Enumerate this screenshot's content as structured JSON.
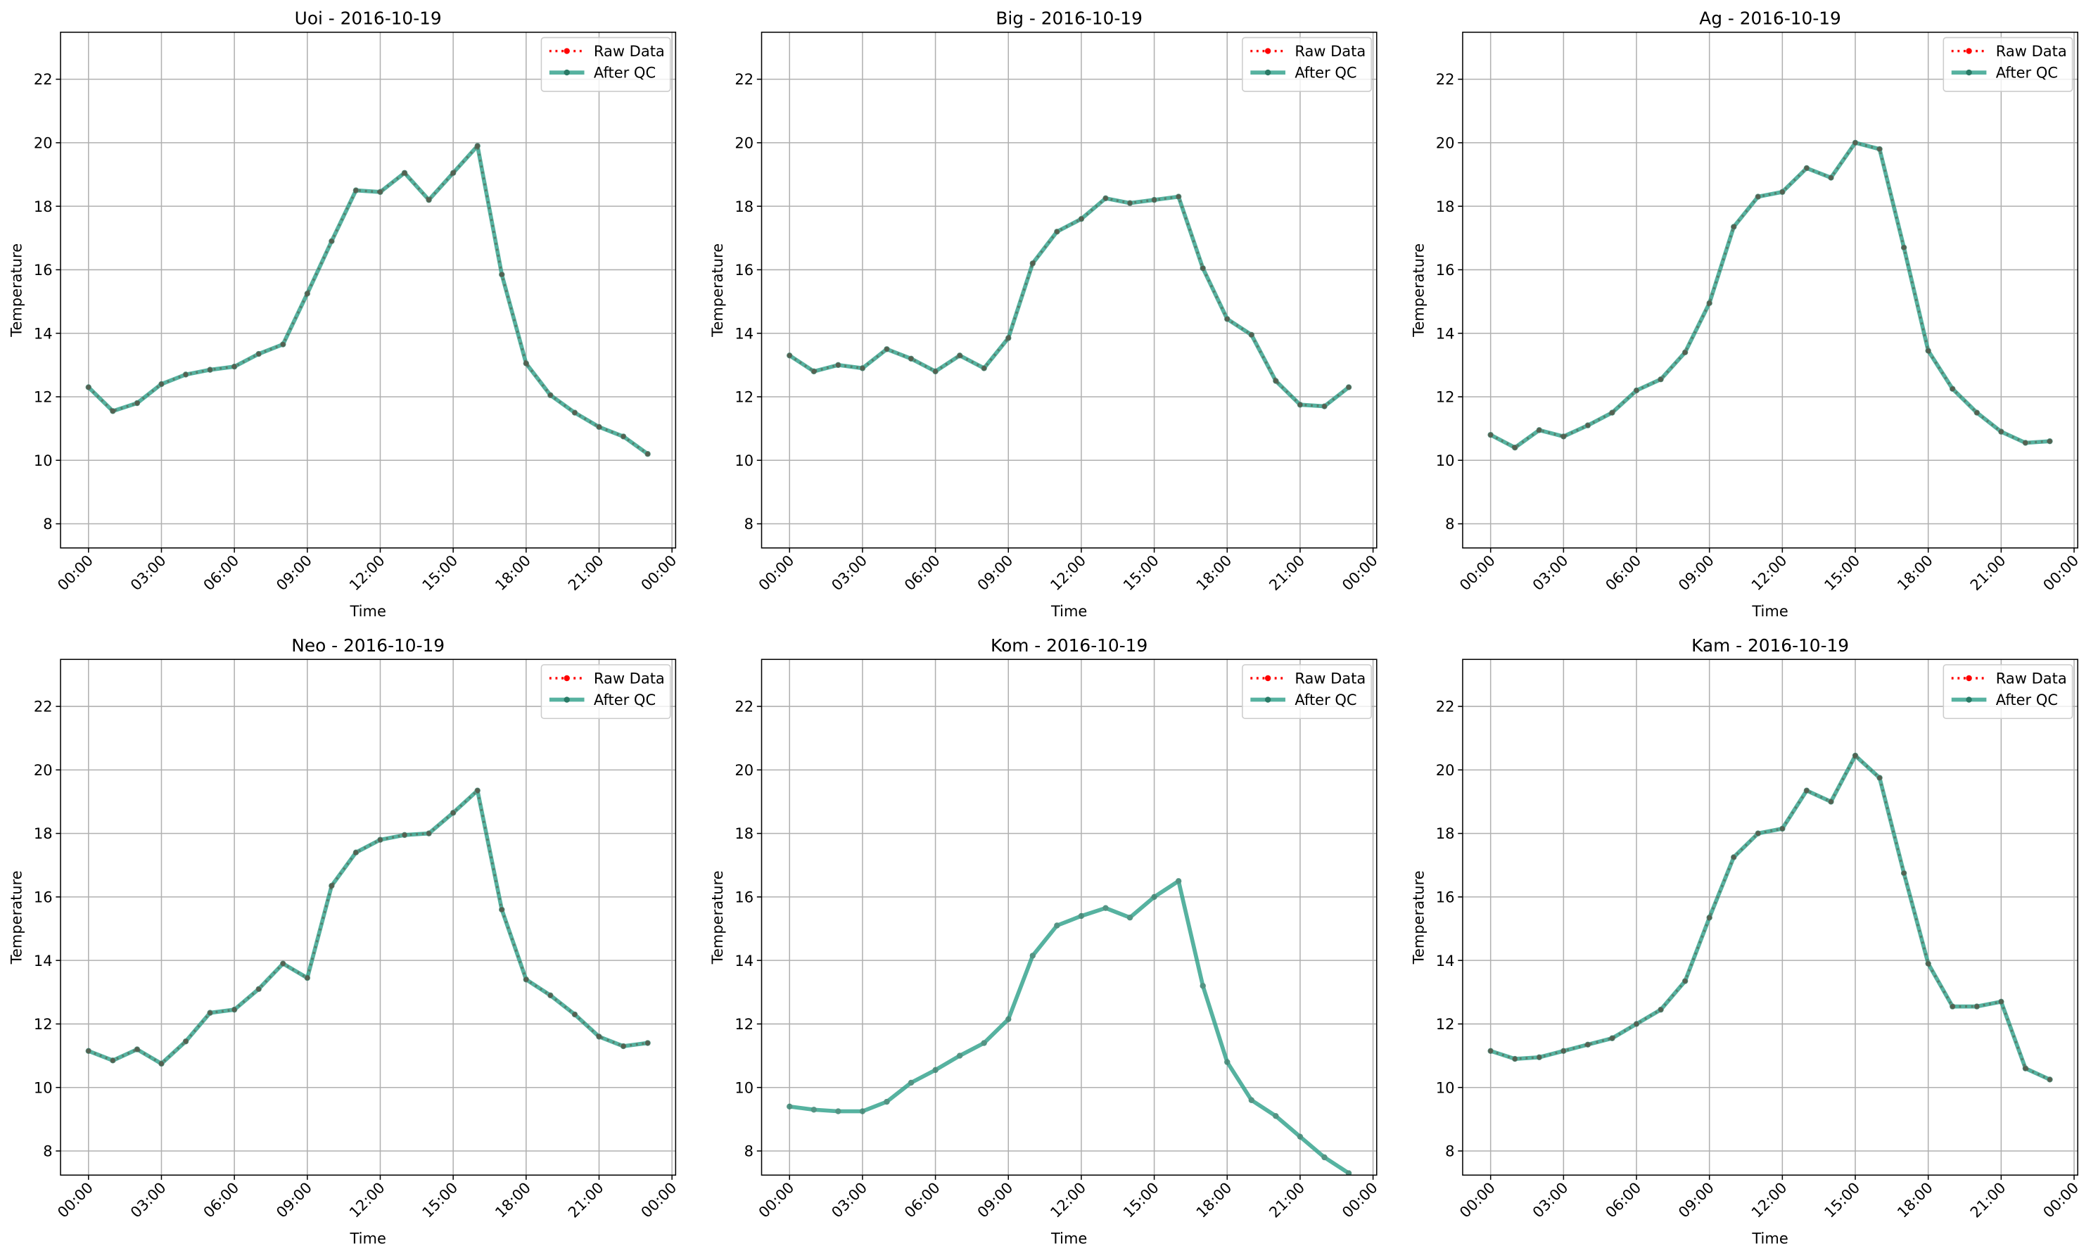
{
  "chart_data": [
    {
      "type": "line",
      "title": "Uoi - 2016-10-19",
      "xlabel": "Time",
      "ylabel": "Temperature",
      "x": [
        0,
        1,
        2,
        3,
        4,
        5,
        6,
        7,
        8,
        9,
        10,
        11,
        12,
        13,
        14,
        15,
        16,
        17,
        18,
        19,
        20,
        21,
        22,
        23
      ],
      "xlim": [
        -1.15,
        24.15
      ],
      "xticks": [
        {
          "value": 0,
          "label": "00:00"
        },
        {
          "value": 3,
          "label": "03:00"
        },
        {
          "value": 6,
          "label": "06:00"
        },
        {
          "value": 9,
          "label": "09:00"
        },
        {
          "value": 12,
          "label": "12:00"
        },
        {
          "value": 15,
          "label": "15:00"
        },
        {
          "value": 18,
          "label": "18:00"
        },
        {
          "value": 21,
          "label": "21:00"
        },
        {
          "value": 24,
          "label": "00:00"
        }
      ],
      "ylim": [
        7.24,
        23.48
      ],
      "yticks": [
        8,
        10,
        12,
        14,
        16,
        18,
        20,
        22
      ],
      "grid": true,
      "legend": "upper right",
      "series": [
        {
          "name": "Raw Data",
          "color": "#ff0000",
          "linestyle": "dotted",
          "values": [
            12.3,
            11.55,
            11.8,
            12.4,
            12.7,
            12.85,
            12.95,
            13.35,
            13.65,
            15.25,
            16.9,
            18.5,
            18.45,
            19.05,
            18.2,
            19.05,
            19.9,
            15.85,
            13.05,
            12.05,
            11.5,
            11.05,
            10.75,
            10.2
          ]
        },
        {
          "name": "After QC",
          "color": "#2ca089",
          "linestyle": "solid",
          "values": [
            12.3,
            11.55,
            11.8,
            12.4,
            12.7,
            12.85,
            12.95,
            13.35,
            13.65,
            15.25,
            16.9,
            18.5,
            18.45,
            19.05,
            18.2,
            19.05,
            19.9,
            15.85,
            13.05,
            12.05,
            11.5,
            11.05,
            10.75,
            10.2
          ]
        }
      ]
    },
    {
      "type": "line",
      "title": "Big - 2016-10-19",
      "xlabel": "Time",
      "ylabel": "Temperature",
      "x": [
        0,
        1,
        2,
        3,
        4,
        5,
        6,
        7,
        8,
        9,
        10,
        11,
        12,
        13,
        14,
        15,
        16,
        17,
        18,
        19,
        20,
        21,
        22,
        23
      ],
      "xlim": [
        -1.15,
        24.15
      ],
      "xticks": [
        {
          "value": 0,
          "label": "00:00"
        },
        {
          "value": 3,
          "label": "03:00"
        },
        {
          "value": 6,
          "label": "06:00"
        },
        {
          "value": 9,
          "label": "09:00"
        },
        {
          "value": 12,
          "label": "12:00"
        },
        {
          "value": 15,
          "label": "15:00"
        },
        {
          "value": 18,
          "label": "18:00"
        },
        {
          "value": 21,
          "label": "21:00"
        },
        {
          "value": 24,
          "label": "00:00"
        }
      ],
      "ylim": [
        7.24,
        23.48
      ],
      "yticks": [
        8,
        10,
        12,
        14,
        16,
        18,
        20,
        22
      ],
      "grid": true,
      "legend": "upper right",
      "series": [
        {
          "name": "Raw Data",
          "color": "#ff0000",
          "linestyle": "dotted",
          "values": [
            13.3,
            12.8,
            13.0,
            12.9,
            13.5,
            13.2,
            12.8,
            13.3,
            12.9,
            13.85,
            16.2,
            17.2,
            17.6,
            18.25,
            18.1,
            18.2,
            18.3,
            16.05,
            14.45,
            13.95,
            12.5,
            11.75,
            11.7,
            12.3
          ]
        },
        {
          "name": "After QC",
          "color": "#2ca089",
          "linestyle": "solid",
          "values": [
            13.3,
            12.8,
            13.0,
            12.9,
            13.5,
            13.2,
            12.8,
            13.3,
            12.9,
            13.85,
            16.2,
            17.2,
            17.6,
            18.25,
            18.1,
            18.2,
            18.3,
            16.05,
            14.45,
            13.95,
            12.5,
            11.75,
            11.7,
            12.3
          ]
        }
      ]
    },
    {
      "type": "line",
      "title": "Ag - 2016-10-19",
      "xlabel": "Time",
      "ylabel": "Temperature",
      "x": [
        0,
        1,
        2,
        3,
        4,
        5,
        6,
        7,
        8,
        9,
        10,
        11,
        12,
        13,
        14,
        15,
        16,
        17,
        18,
        19,
        20,
        21,
        22,
        23
      ],
      "xlim": [
        -1.15,
        24.15
      ],
      "xticks": [
        {
          "value": 0,
          "label": "00:00"
        },
        {
          "value": 3,
          "label": "03:00"
        },
        {
          "value": 6,
          "label": "06:00"
        },
        {
          "value": 9,
          "label": "09:00"
        },
        {
          "value": 12,
          "label": "12:00"
        },
        {
          "value": 15,
          "label": "15:00"
        },
        {
          "value": 18,
          "label": "18:00"
        },
        {
          "value": 21,
          "label": "21:00"
        },
        {
          "value": 24,
          "label": "00:00"
        }
      ],
      "ylim": [
        7.24,
        23.48
      ],
      "yticks": [
        8,
        10,
        12,
        14,
        16,
        18,
        20,
        22
      ],
      "grid": true,
      "legend": "upper right",
      "series": [
        {
          "name": "Raw Data",
          "color": "#ff0000",
          "linestyle": "dotted",
          "values": [
            10.8,
            10.4,
            10.95,
            10.75,
            11.1,
            11.5,
            12.2,
            12.55,
            13.4,
            14.95,
            17.35,
            18.3,
            18.45,
            19.2,
            18.9,
            20.0,
            19.8,
            16.7,
            13.45,
            12.25,
            11.5,
            10.9,
            10.55,
            10.6
          ]
        },
        {
          "name": "After QC",
          "color": "#2ca089",
          "linestyle": "solid",
          "values": [
            10.8,
            10.4,
            10.95,
            10.75,
            11.1,
            11.5,
            12.2,
            12.55,
            13.4,
            14.95,
            17.35,
            18.3,
            18.45,
            19.2,
            18.9,
            20.0,
            19.8,
            16.7,
            13.45,
            12.25,
            11.5,
            10.9,
            10.55,
            10.6
          ]
        }
      ]
    },
    {
      "type": "line",
      "title": "Neo - 2016-10-19",
      "xlabel": "Time",
      "ylabel": "Temperature",
      "x": [
        0,
        1,
        2,
        3,
        4,
        5,
        6,
        7,
        8,
        9,
        10,
        11,
        12,
        13,
        14,
        15,
        16,
        17,
        18,
        19,
        20,
        21,
        22,
        23
      ],
      "xlim": [
        -1.15,
        24.15
      ],
      "xticks": [
        {
          "value": 0,
          "label": "00:00"
        },
        {
          "value": 3,
          "label": "03:00"
        },
        {
          "value": 6,
          "label": "06:00"
        },
        {
          "value": 9,
          "label": "09:00"
        },
        {
          "value": 12,
          "label": "12:00"
        },
        {
          "value": 15,
          "label": "15:00"
        },
        {
          "value": 18,
          "label": "18:00"
        },
        {
          "value": 21,
          "label": "21:00"
        },
        {
          "value": 24,
          "label": "00:00"
        }
      ],
      "ylim": [
        7.24,
        23.48
      ],
      "yticks": [
        8,
        10,
        12,
        14,
        16,
        18,
        20,
        22
      ],
      "grid": true,
      "legend": "upper right",
      "series": [
        {
          "name": "Raw Data",
          "color": "#ff0000",
          "linestyle": "dotted",
          "values": [
            11.15,
            10.85,
            11.2,
            10.75,
            11.45,
            12.35,
            12.45,
            13.1,
            13.9,
            13.45,
            16.35,
            17.4,
            17.8,
            17.95,
            18.0,
            18.65,
            19.35,
            15.6,
            13.4,
            12.9,
            12.3,
            11.6,
            11.3,
            11.4
          ]
        },
        {
          "name": "After QC",
          "color": "#2ca089",
          "linestyle": "solid",
          "values": [
            11.15,
            10.85,
            11.2,
            10.75,
            11.45,
            12.35,
            12.45,
            13.1,
            13.9,
            13.45,
            16.35,
            17.4,
            17.8,
            17.95,
            18.0,
            18.65,
            19.35,
            15.6,
            13.4,
            12.9,
            12.3,
            11.6,
            11.3,
            11.4
          ]
        }
      ]
    },
    {
      "type": "line",
      "title": "Kom - 2016-10-19",
      "xlabel": "Time",
      "ylabel": "Temperature",
      "x": [
        0,
        1,
        2,
        3,
        4,
        5,
        6,
        7,
        8,
        9,
        10,
        11,
        12,
        13,
        14,
        15,
        16,
        17,
        18,
        19,
        20,
        21,
        22,
        23
      ],
      "xlim": [
        -1.15,
        24.15
      ],
      "xticks": [
        {
          "value": 0,
          "label": "00:00"
        },
        {
          "value": 3,
          "label": "03:00"
        },
        {
          "value": 6,
          "label": "06:00"
        },
        {
          "value": 9,
          "label": "09:00"
        },
        {
          "value": 12,
          "label": "12:00"
        },
        {
          "value": 15,
          "label": "15:00"
        },
        {
          "value": 18,
          "label": "18:00"
        },
        {
          "value": 21,
          "label": "21:00"
        },
        {
          "value": 24,
          "label": "00:00"
        }
      ],
      "ylim": [
        7.24,
        23.48
      ],
      "yticks": [
        8,
        10,
        12,
        14,
        16,
        18,
        20,
        22
      ],
      "grid": true,
      "legend": "upper right",
      "series": [
        {
          "name": "Raw Data",
          "color": "#ff0000",
          "linestyle": "dotted",
          "values": [
            null,
            null,
            null,
            null,
            null,
            null,
            null,
            null,
            null,
            null,
            null,
            null,
            null,
            null,
            null,
            null,
            null,
            null,
            null,
            null,
            null,
            null,
            null,
            null
          ]
        },
        {
          "name": "After QC",
          "color": "#2ca089",
          "linestyle": "solid",
          "values": [
            9.4,
            9.3,
            9.25,
            9.25,
            9.55,
            10.15,
            10.55,
            11.0,
            11.4,
            12.15,
            14.15,
            15.1,
            15.4,
            15.65,
            15.35,
            16.0,
            16.5,
            13.2,
            10.8,
            9.6,
            9.1,
            8.45,
            7.8,
            7.3
          ]
        }
      ]
    },
    {
      "type": "line",
      "title": "Kam - 2016-10-19",
      "xlabel": "Time",
      "ylabel": "Temperature",
      "x": [
        0,
        1,
        2,
        3,
        4,
        5,
        6,
        7,
        8,
        9,
        10,
        11,
        12,
        13,
        14,
        15,
        16,
        17,
        18,
        19,
        20,
        21,
        22,
        23
      ],
      "xlim": [
        -1.15,
        24.15
      ],
      "xticks": [
        {
          "value": 0,
          "label": "00:00"
        },
        {
          "value": 3,
          "label": "03:00"
        },
        {
          "value": 6,
          "label": "06:00"
        },
        {
          "value": 9,
          "label": "09:00"
        },
        {
          "value": 12,
          "label": "12:00"
        },
        {
          "value": 15,
          "label": "15:00"
        },
        {
          "value": 18,
          "label": "18:00"
        },
        {
          "value": 21,
          "label": "21:00"
        },
        {
          "value": 24,
          "label": "00:00"
        }
      ],
      "ylim": [
        7.24,
        23.48
      ],
      "yticks": [
        8,
        10,
        12,
        14,
        16,
        18,
        20,
        22
      ],
      "grid": true,
      "legend": "upper right",
      "series": [
        {
          "name": "Raw Data",
          "color": "#ff0000",
          "linestyle": "dotted",
          "values": [
            11.15,
            10.9,
            10.95,
            11.15,
            11.35,
            11.55,
            12.0,
            12.45,
            13.35,
            15.35,
            17.25,
            18.0,
            18.15,
            19.35,
            19.0,
            20.45,
            19.75,
            16.75,
            13.9,
            12.55,
            12.55,
            12.7,
            10.6,
            10.25
          ]
        },
        {
          "name": "After QC",
          "color": "#2ca089",
          "linestyle": "solid",
          "values": [
            11.15,
            10.9,
            10.95,
            11.15,
            11.35,
            11.55,
            12.0,
            12.45,
            13.35,
            15.35,
            17.25,
            18.0,
            18.15,
            19.35,
            19.0,
            20.45,
            19.75,
            16.75,
            13.9,
            12.55,
            12.55,
            12.7,
            10.6,
            10.25
          ]
        }
      ]
    }
  ]
}
